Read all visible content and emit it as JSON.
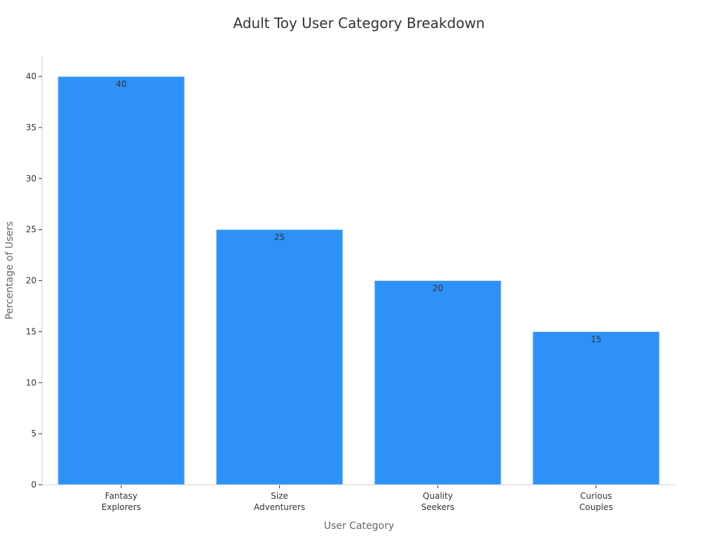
{
  "chart_data": {
    "type": "bar",
    "title": "Adult Toy User Category Breakdown",
    "xlabel": "User Category",
    "ylabel": "Percentage of Users",
    "categories": [
      [
        "Fantasy",
        "Explorers"
      ],
      [
        "Size",
        "Adventurers"
      ],
      [
        "Quality",
        "Seekers"
      ],
      [
        "Curious",
        "Couples"
      ]
    ],
    "values": [
      40,
      25,
      20,
      15
    ],
    "ylim": [
      0,
      42
    ],
    "yticks": [
      0,
      5,
      10,
      15,
      20,
      25,
      30,
      35,
      40
    ],
    "bar_color": "#2e91f8",
    "bar_edge_color": "#cfe3f7",
    "grid": false,
    "legend": "none"
  }
}
